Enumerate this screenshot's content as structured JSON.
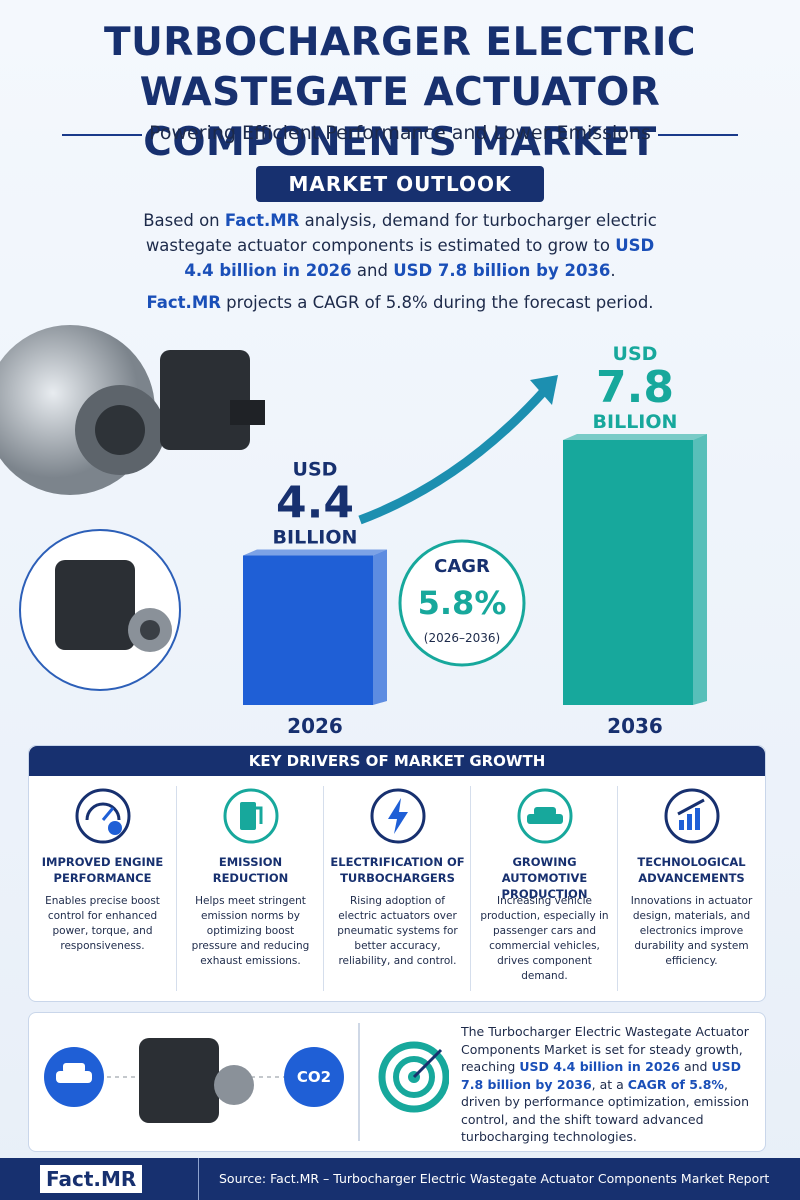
{
  "header": {
    "title": "TURBOCHARGER ELECTRIC WASTEGATE ACTUATOR COMPONENTS MARKET",
    "subtitle": "Powering Efficient Performance and Lower Emissions"
  },
  "outlook": {
    "heading": "MARKET OUTLOOK",
    "paragraph1": [
      "Based on ",
      "Fact.MR",
      " analysis, demand for turbocharger electric wastegate actuator components is estimated to grow to ",
      "USD 4.4 billion in 2026",
      " and ",
      "USD 7.8 billion by 2036",
      "."
    ],
    "paragraph2": [
      "Fact.MR",
      " projects a CAGR of 5.8% during the forecast period."
    ]
  },
  "chart_data": {
    "type": "bar",
    "categories": [
      "2026",
      "2036"
    ],
    "values": [
      4.4,
      7.8
    ],
    "value_prefix": "USD",
    "value_suffix": "BILLION",
    "colors": [
      "#1f5fd6",
      "#17a89c"
    ],
    "cagr": {
      "label": "CAGR",
      "value": "5.8%",
      "period": "(2026–2036)"
    }
  },
  "drivers": {
    "heading": "KEY DRIVERS OF MARKET GROWTH",
    "items": [
      {
        "title": "IMPROVED ENGINE PERFORMANCE",
        "text": "Enables precise boost control for enhanced power, torque, and responsiveness."
      },
      {
        "title": "EMISSION REDUCTION",
        "text": "Helps meet stringent emission norms by optimizing boost pressure and reducing exhaust emissions."
      },
      {
        "title": "ELECTRIFICATION OF TURBOCHARGERS",
        "text": "Rising adoption of electric actuators over pneumatic systems for better accuracy, reliability, and control."
      },
      {
        "title": "GROWING AUTOMOTIVE PRODUCTION",
        "text": "Increasing vehicle production, especially in passenger cars and commercial vehicles, drives component demand."
      },
      {
        "title": "TECHNOLOGICAL ADVANCEMENTS",
        "text": "Innovations in actuator design, materials, and electronics improve durability and system efficiency."
      }
    ]
  },
  "summary": {
    "icon_label": "CO2",
    "text": [
      "The Turbocharger Electric Wastegate Actuator Components Market is set for steady growth, reaching ",
      "USD 4.4 billion in 2026",
      " and ",
      "USD 7.8 billion by 2036",
      ", at a ",
      "CAGR of 5.8%",
      ", driven by performance optimization, emission control, and the shift toward advanced turbocharging technologies."
    ]
  },
  "footer": {
    "logo": "Fact.MR",
    "source": "Source: Fact.MR – Turbocharger Electric Wastegate Actuator Components Market Report"
  }
}
